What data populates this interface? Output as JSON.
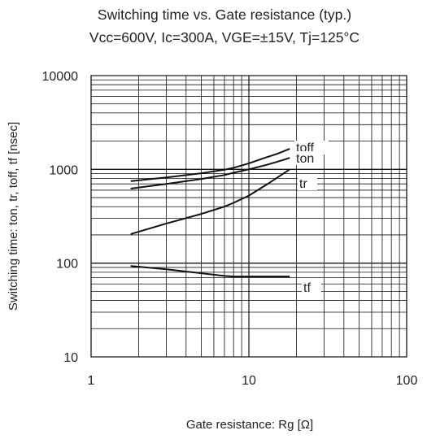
{
  "chart_data": {
    "type": "line",
    "title": "Switching time vs. Gate resistance (typ.)",
    "subtitle": "Vcc=600V, Ic=300A, VGE=±15V, Tj=125°C",
    "xlabel": "Gate resistance: Rg [Ω]",
    "ylabel": "Switching time:  ton, tr, toff, tf  [nsec]",
    "xscale": "log",
    "yscale": "log",
    "xlim": [
      1,
      100
    ],
    "ylim": [
      10,
      10000
    ],
    "grid": true,
    "x_ticks": [
      "1",
      "10",
      "100"
    ],
    "y_ticks": [
      "10",
      "100",
      "1000",
      "10000"
    ],
    "series": [
      {
        "name": "toff",
        "x": [
          1.8,
          3,
          5,
          7,
          8,
          10,
          13,
          15,
          18
        ],
        "y": [
          750,
          820,
          910,
          990,
          1040,
          1160,
          1350,
          1460,
          1650
        ]
      },
      {
        "name": "ton",
        "x": [
          1.8,
          3,
          5,
          7,
          8,
          10,
          13,
          15,
          18
        ],
        "y": [
          625,
          700,
          790,
          870,
          920,
          1000,
          1120,
          1200,
          1320
        ]
      },
      {
        "name": "tr",
        "x": [
          1.8,
          3,
          5,
          7,
          8,
          10,
          13,
          15,
          18
        ],
        "y": [
          205,
          265,
          335,
          400,
          440,
          525,
          690,
          810,
          990
        ]
      },
      {
        "name": "tf",
        "x": [
          1.8,
          3,
          5,
          7,
          8,
          10,
          13,
          15,
          18
        ],
        "y": [
          93,
          86,
          78,
          73,
          72,
          72,
          72,
          72,
          72
        ]
      }
    ]
  }
}
